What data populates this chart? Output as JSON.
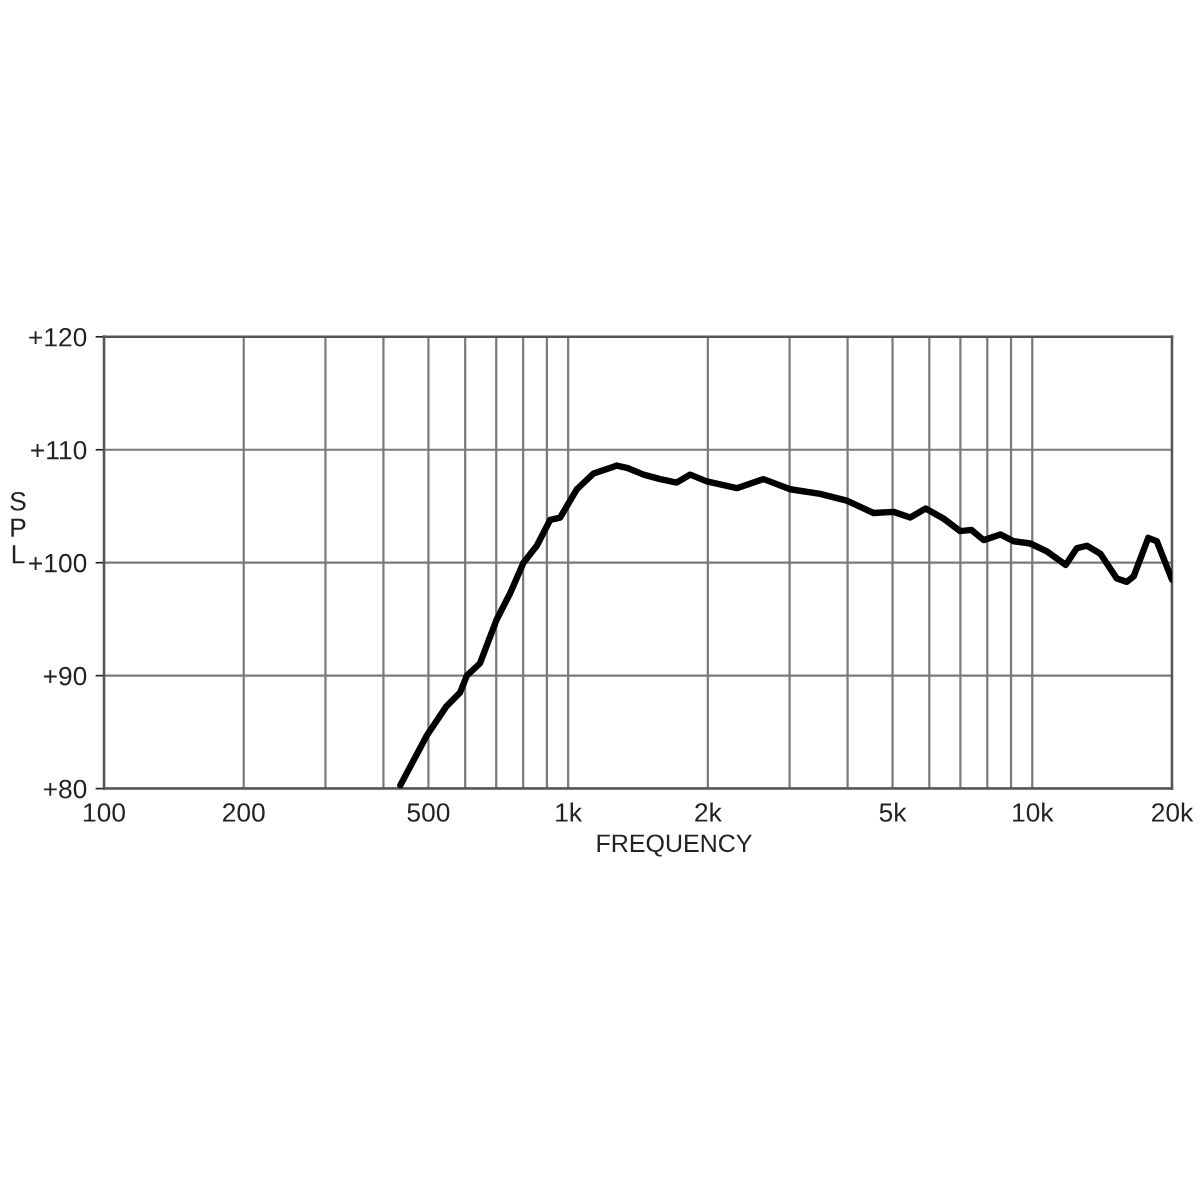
{
  "chart_data": {
    "type": "line",
    "xlabel": "FREQUENCY",
    "ylabel": "SPL",
    "x": [
      435,
      496,
      547,
      585,
      605,
      646,
      702,
      750,
      801,
      856,
      915,
      961,
      1027,
      1044,
      1134,
      1253,
      1273,
      1338,
      1454,
      1579,
      1714,
      1833,
      1989,
      2309,
      2637,
      3008,
      3491,
      3983,
      4551,
      5025,
      5459,
      5892,
      6440,
      6993,
      7397,
      7858,
      8534,
      9120,
      9902,
      10750,
      11800,
      12480,
      13120,
      14020,
      15210,
      15990,
      16540,
      17780,
      18550,
      20000
    ],
    "series": [
      {
        "color": "#000000",
        "values": [
          80.3,
          84.7,
          87.3,
          88.5,
          90.0,
          91.1,
          95.0,
          97.3,
          100.0,
          101.5,
          103.8,
          104.0,
          106.0,
          106.5,
          107.9,
          108.5,
          108.6,
          108.4,
          107.8,
          107.4,
          107.1,
          107.8,
          107.2,
          106.6,
          107.4,
          106.5,
          106.1,
          105.5,
          104.4,
          104.5,
          104.0,
          104.8,
          103.9,
          102.8,
          102.9,
          102.0,
          102.5,
          101.9,
          101.7,
          101.0,
          99.8,
          101.3,
          101.5,
          100.8,
          98.6,
          98.3,
          98.8,
          102.2,
          101.9,
          98.5
        ]
      }
    ],
    "log": "x",
    "grid": true,
    "xlim": [
      100,
      20000
    ],
    "xticks": [
      100,
      200,
      {
        "value": 300,
        "label": null
      },
      {
        "value": 400,
        "label": null
      },
      500,
      {
        "value": 600,
        "label": null
      },
      {
        "value": 700,
        "label": null
      },
      {
        "value": 800,
        "label": null
      },
      {
        "value": 900,
        "label": null
      },
      {
        "value": 1000,
        "label": "1k"
      },
      {
        "value": 2000,
        "label": "2k"
      },
      {
        "value": 3000,
        "label": null
      },
      {
        "value": 4000,
        "label": null
      },
      {
        "value": 5000,
        "label": "5k"
      },
      {
        "value": 6000,
        "label": null
      },
      {
        "value": 7000,
        "label": null
      },
      {
        "value": 8000,
        "label": null
      },
      {
        "value": 9000,
        "label": null
      },
      {
        "value": 10000,
        "label": "10k"
      },
      {
        "value": 20000,
        "label": "20k"
      }
    ],
    "ylim": [
      80,
      120
    ],
    "yticks": [
      {
        "value": 80,
        "label": "+80"
      },
      {
        "value": 90,
        "label": "+90"
      },
      {
        "value": 100,
        "label": "+100"
      },
      {
        "value": 110,
        "label": "+110"
      },
      {
        "value": 120,
        "label": "+120"
      }
    ]
  }
}
